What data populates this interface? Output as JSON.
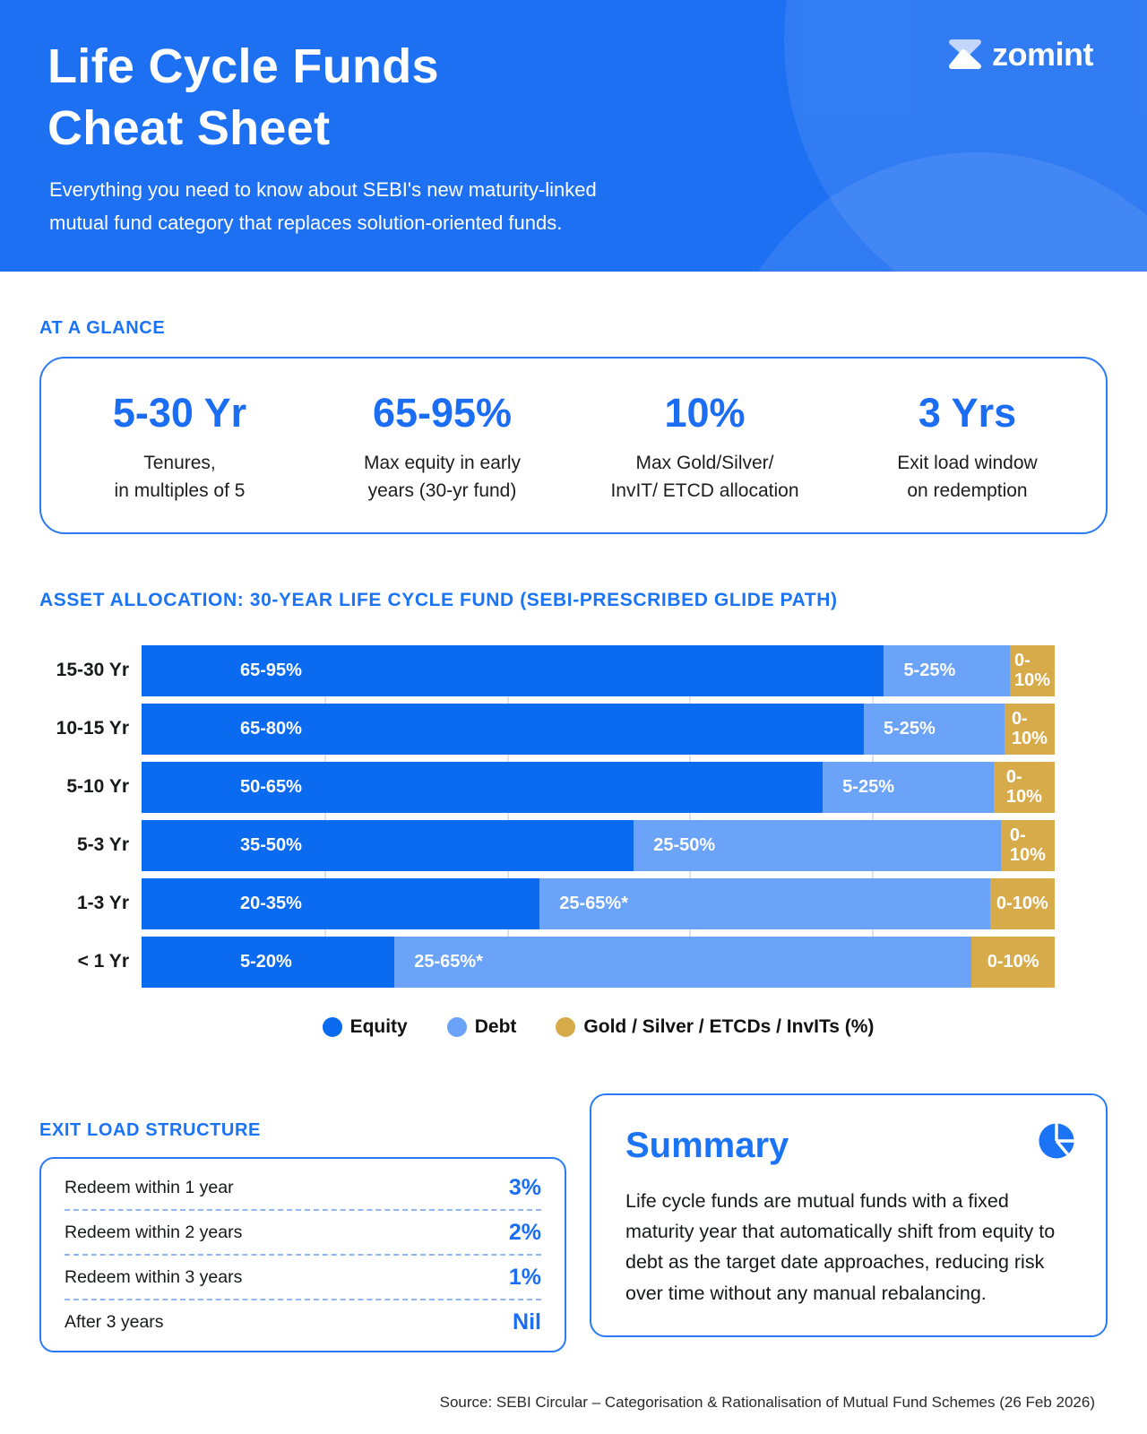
{
  "brand": {
    "name": "zomint"
  },
  "hero": {
    "title": "Life Cycle Funds\nCheat Sheet",
    "subtitle": "Everything you need to know about SEBI's new maturity-linked\nmutual fund category that replaces solution-oriented funds."
  },
  "glance": {
    "heading": "AT A GLANCE",
    "stats": [
      {
        "value": "5-30 Yr",
        "label": "Tenures,\nin multiples of 5"
      },
      {
        "value": "65-95%",
        "label": "Max equity in early\nyears (30-yr fund)"
      },
      {
        "value": "10%",
        "label": "Max Gold/Silver/\nInvIT/ ETCD allocation"
      },
      {
        "value": "3 Yrs",
        "label": "Exit load window\non redemption"
      }
    ]
  },
  "chart_data": {
    "type": "bar",
    "stacked": true,
    "orientation": "horizontal",
    "title": "ASSET ALLOCATION: 30-YEAR LIFE CYCLE FUND (SEBI-PRESCRIBED GLIDE PATH)",
    "categories": [
      "15-30 Yr",
      "10-15 Yr",
      "5-10 Yr",
      "5-3 Yr",
      "1-3 Yr",
      "< 1 Yr"
    ],
    "series": [
      {
        "name": "Equity",
        "color": "#0a6af0",
        "labels": [
          "65-95%",
          "65-80%",
          "50-65%",
          "35-50%",
          "20-35%",
          "5-20%"
        ],
        "widths_pct": [
          81.3,
          79.1,
          74.6,
          53.9,
          43.6,
          27.7
        ]
      },
      {
        "name": "Debt",
        "color": "#6aa3f7",
        "labels": [
          "5-25%",
          "5-25%",
          "5-25%",
          "25-50%",
          "25-65%*",
          "25-65%*"
        ],
        "widths_pct": [
          13.8,
          15.4,
          18.7,
          40.2,
          49.3,
          63.2
        ]
      },
      {
        "name": "Gold / Silver / ETCDs / InvITs (%)",
        "color": "#d8ab4a",
        "labels": [
          "0-\n10%",
          "0-\n10%",
          "0-\n10%",
          "0-\n10%",
          "0-10%",
          "0-10%"
        ],
        "widths_pct": [
          4.9,
          5.5,
          6.7,
          5.9,
          7.1,
          9.1
        ]
      }
    ],
    "gridlines_pct": [
      20,
      40,
      60,
      80
    ],
    "legend_position": "bottom-center",
    "xlabel": "",
    "ylabel": ""
  },
  "exit_load": {
    "heading": "EXIT LOAD STRUCTURE",
    "rows": [
      {
        "label": "Redeem within 1 year",
        "value": "3%"
      },
      {
        "label": "Redeem within 2 years",
        "value": "2%"
      },
      {
        "label": "Redeem within 3 years",
        "value": "1%"
      },
      {
        "label": "After 3 years",
        "value": "Nil"
      }
    ]
  },
  "summary": {
    "heading": "Summary",
    "body": "Life cycle funds are mutual funds with a fixed maturity year that automatically shift from equity to debt as the target date approaches, reducing risk over time without any manual rebalancing."
  },
  "footer": {
    "source": "Source: SEBI Circular – Categorisation & Rationalisation of Mutual Fund Schemes (26 Feb 2026)"
  },
  "colors": {
    "accent": "#1b73f5",
    "hero_bg": "#1d70f2",
    "border": "#2b7bf5"
  }
}
